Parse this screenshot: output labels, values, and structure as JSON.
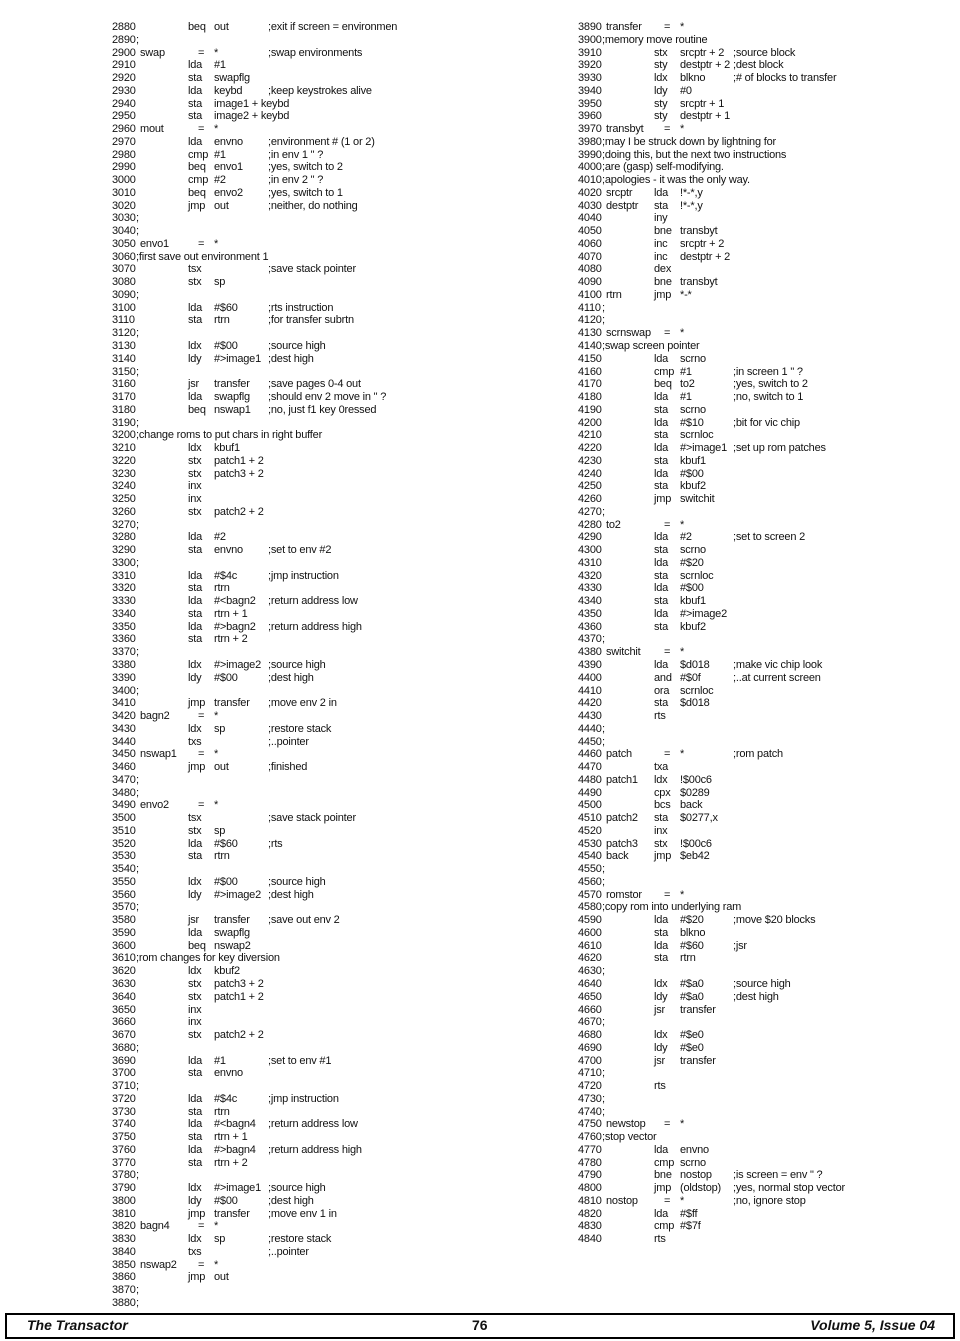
{
  "listing": {
    "left": [
      {
        "n": "2880",
        "o": "beq",
        "a": "out",
        "c": ";exit if screen = environmen"
      },
      {
        "n": "2890",
        "l": ";"
      },
      {
        "n": "2900",
        "l": "swap",
        "o": "=",
        "a": "*",
        "c": ";swap environments"
      },
      {
        "n": "2910",
        "o": "lda",
        "a": "#1"
      },
      {
        "n": "2920",
        "o": "sta",
        "a": "swapflg"
      },
      {
        "n": "2930",
        "o": "lda",
        "a": "keybd",
        "c": ";keep keystrokes alive"
      },
      {
        "n": "2940",
        "o": "sta",
        "a": "image1 + keybd"
      },
      {
        "n": "2950",
        "o": "sta",
        "a": "image2 + keybd"
      },
      {
        "n": "2960",
        "l": "mout",
        "o": "=",
        "a": "*"
      },
      {
        "n": "2970",
        "o": "lda",
        "a": "envno",
        "c": ";environment # (1 or 2)"
      },
      {
        "n": "2980",
        "o": "cmp",
        "a": "#1",
        "c": ";in env 1 \" ?"
      },
      {
        "n": "2990",
        "o": "beq",
        "a": "envo1",
        "c": ";yes, switch to 2"
      },
      {
        "n": "3000",
        "o": "cmp",
        "a": "#2",
        "c": ";in env 2 \" ?"
      },
      {
        "n": "3010",
        "o": "beq",
        "a": "envo2",
        "c": ";yes, switch to 1"
      },
      {
        "n": "3020",
        "o": "jmp",
        "a": "out",
        "c": ";neither, do nothing"
      },
      {
        "n": "3030",
        "l": ";"
      },
      {
        "n": "3040",
        "l": ";"
      },
      {
        "n": "3050",
        "l": "envo1",
        "o": "=",
        "a": "*"
      },
      {
        "n": "3060",
        "l": ";first save out environment 1"
      },
      {
        "n": "3070",
        "o": "tsx",
        "c": ";save stack pointer"
      },
      {
        "n": "3080",
        "o": "stx",
        "a": "sp"
      },
      {
        "n": "3090",
        "l": ";"
      },
      {
        "n": "3100",
        "o": "lda",
        "a": "#$60",
        "c": ";rts instruction"
      },
      {
        "n": "3110",
        "o": "sta",
        "a": "rtrn",
        "c": ";for transfer subrtn"
      },
      {
        "n": "3120",
        "l": ";"
      },
      {
        "n": "3130",
        "o": "ldx",
        "a": "#$00",
        "c": ";source high"
      },
      {
        "n": "3140",
        "o": "ldy",
        "a": "#>image1",
        "c": ";dest high"
      },
      {
        "n": "3150",
        "l": ";"
      },
      {
        "n": "3160",
        "o": "jsr",
        "a": "transfer",
        "c": ";save pages 0-4 out"
      },
      {
        "n": "3170",
        "o": "lda",
        "a": "swapflg",
        "c": ";should env 2 move in \" ?"
      },
      {
        "n": "3180",
        "o": "beq",
        "a": "nswap1",
        "c": ";no, just f1 key 0ressed"
      },
      {
        "n": "3190",
        "l": ";"
      },
      {
        "n": "3200",
        "l": ";change roms to put chars in right buffer"
      },
      {
        "n": "3210",
        "o": "ldx",
        "a": "kbuf1"
      },
      {
        "n": "3220",
        "o": "stx",
        "a": "patch1 + 2"
      },
      {
        "n": "3230",
        "o": "stx",
        "a": "patch3 + 2"
      },
      {
        "n": "3240",
        "o": "inx"
      },
      {
        "n": "3250",
        "o": "inx"
      },
      {
        "n": "3260",
        "o": "stx",
        "a": "patch2 + 2"
      },
      {
        "n": "3270",
        "l": ";"
      },
      {
        "n": "3280",
        "o": "lda",
        "a": "#2"
      },
      {
        "n": "3290",
        "o": "sta",
        "a": "envno",
        "c": ";set to env #2"
      },
      {
        "n": "3300",
        "l": ";"
      },
      {
        "n": "3310",
        "o": "lda",
        "a": "#$4c",
        "c": ";jmp instruction"
      },
      {
        "n": "3320",
        "o": "sta",
        "a": "rtrn"
      },
      {
        "n": "3330",
        "o": "lda",
        "a": "#<bagn2",
        "c": ";return address low"
      },
      {
        "n": "3340",
        "o": "sta",
        "a": "rtrn + 1"
      },
      {
        "n": "3350",
        "o": "lda",
        "a": "#>bagn2",
        "c": ";return address high"
      },
      {
        "n": "3360",
        "o": "sta",
        "a": "rtrn + 2"
      },
      {
        "n": "3370",
        "l": ";"
      },
      {
        "n": "3380",
        "o": "ldx",
        "a": "#>image2",
        "c": ";source high"
      },
      {
        "n": "3390",
        "o": "ldy",
        "a": "#$00",
        "c": ";dest  high"
      },
      {
        "n": "3400",
        "l": ";"
      },
      {
        "n": "3410",
        "o": "jmp",
        "a": "transfer",
        "c": ";move env 2 in"
      },
      {
        "n": "3420",
        "l": "bagn2",
        "o": "=",
        "a": "*"
      },
      {
        "n": "3430",
        "o": "ldx",
        "a": "sp",
        "c": ";restore stack"
      },
      {
        "n": "3440",
        "o": "txs",
        "c": ";..pointer"
      },
      {
        "n": "3450",
        "l": "nswap1",
        "o": "=",
        "a": "*"
      },
      {
        "n": "3460",
        "o": "jmp",
        "a": "out",
        "c": ";finished"
      },
      {
        "n": "3470",
        "l": ";"
      },
      {
        "n": "3480",
        "l": ";"
      },
      {
        "n": "3490",
        "l": "envo2",
        "o": "=",
        "a": "*"
      },
      {
        "n": "3500",
        "o": "tsx",
        "c": ";save stack pointer"
      },
      {
        "n": "3510",
        "o": "stx",
        "a": "sp"
      },
      {
        "n": "3520",
        "o": "lda",
        "a": "#$60",
        "c": ";rts"
      },
      {
        "n": "3530",
        "o": "sta",
        "a": "rtrn"
      },
      {
        "n": "3540",
        "l": ";"
      },
      {
        "n": "3550",
        "o": "ldx",
        "a": "#$00",
        "c": ";source high"
      },
      {
        "n": "3560",
        "o": "ldy",
        "a": "#>image2",
        "c": ";dest high"
      },
      {
        "n": "3570",
        "l": ";"
      },
      {
        "n": "3580",
        "o": "jsr",
        "a": "transfer",
        "c": ";save out env 2"
      },
      {
        "n": "3590",
        "o": "lda",
        "a": "swapflg"
      },
      {
        "n": "3600",
        "o": "beq",
        "a": "nswap2"
      },
      {
        "n": "3610",
        "l": ";rom changes for key diversion"
      },
      {
        "n": "3620",
        "o": "ldx",
        "a": "kbuf2"
      },
      {
        "n": "3630",
        "o": "stx",
        "a": "patch3 + 2"
      },
      {
        "n": "3640",
        "o": "stx",
        "a": "patch1 + 2"
      },
      {
        "n": "3650",
        "o": "inx"
      },
      {
        "n": "3660",
        "o": "inx"
      },
      {
        "n": "3670",
        "o": "stx",
        "a": "patch2 + 2"
      },
      {
        "n": "3680",
        "l": ";"
      },
      {
        "n": "3690",
        "o": "lda",
        "a": "#1",
        "c": ";set to env #1"
      },
      {
        "n": "3700",
        "o": "sta",
        "a": "envno"
      },
      {
        "n": "3710",
        "l": ";"
      },
      {
        "n": "3720",
        "o": "lda",
        "a": "#$4c",
        "c": ";jmp instruction"
      },
      {
        "n": "3730",
        "o": "sta",
        "a": "rtrn"
      },
      {
        "n": "3740",
        "o": "lda",
        "a": "#<bagn4",
        "c": ";return address low"
      },
      {
        "n": "3750",
        "o": "sta",
        "a": "rtrn + 1"
      },
      {
        "n": "3760",
        "o": "lda",
        "a": "#>bagn4",
        "c": ";return address high"
      },
      {
        "n": "3770",
        "o": "sta",
        "a": "rtrn + 2"
      },
      {
        "n": "3780",
        "l": ";"
      },
      {
        "n": "3790",
        "o": "ldx",
        "a": "#>image1",
        "c": ";source high"
      },
      {
        "n": "3800",
        "o": "ldy",
        "a": "#$00",
        "c": ";dest  high"
      },
      {
        "n": "3810",
        "o": "jmp",
        "a": "transfer",
        "c": ";move env 1 in"
      },
      {
        "n": "3820",
        "l": "bagn4",
        "o": "=",
        "a": "*"
      },
      {
        "n": "3830",
        "o": "ldx",
        "a": "sp",
        "c": ";restore stack"
      },
      {
        "n": "3840",
        "o": "txs",
        "c": ";..pointer"
      },
      {
        "n": "3850",
        "l": "nswap2",
        "o": "=",
        "a": "*"
      },
      {
        "n": "3860",
        "o": "jmp",
        "a": "out"
      },
      {
        "n": "3870",
        "l": ";"
      },
      {
        "n": "3880",
        "l": ";"
      }
    ],
    "right": [
      {
        "n": "3890",
        "l": "transfer",
        "o": "=",
        "a": "*"
      },
      {
        "n": "3900",
        "l": ";memory move routine"
      },
      {
        "n": "3910",
        "o": "stx",
        "a": "srcptr + 2",
        "c": ";source block"
      },
      {
        "n": "3920",
        "o": "sty",
        "a": "destptr + 2",
        "c": ";dest block"
      },
      {
        "n": "3930",
        "o": "ldx",
        "a": "blkno",
        "c": ";# of blocks to transfer"
      },
      {
        "n": "3940",
        "o": "ldy",
        "a": "#0"
      },
      {
        "n": "3950",
        "o": "sty",
        "a": "srcptr + 1"
      },
      {
        "n": "3960",
        "o": "sty",
        "a": "destptr + 1"
      },
      {
        "n": "3970",
        "l": "transbyt",
        "o": "=",
        "a": "*"
      },
      {
        "n": "3980",
        "l": ";may I be struck down by lightning for"
      },
      {
        "n": "3990",
        "l": ";doing this, but the next two instructions"
      },
      {
        "n": "4000",
        "l": ";are (gasp) self-modifying."
      },
      {
        "n": "4010",
        "l": ";apologies - it was the only way."
      },
      {
        "n": "4020",
        "l": "srcptr",
        "o": "lda",
        "a": "!*-*,y"
      },
      {
        "n": "4030",
        "l": "destptr",
        "o": "sta",
        "a": "!*-*,y"
      },
      {
        "n": "4040",
        "o": "iny"
      },
      {
        "n": "4050",
        "o": "bne",
        "a": "transbyt"
      },
      {
        "n": "4060",
        "o": "inc",
        "a": "srcptr + 2"
      },
      {
        "n": "4070",
        "o": "inc",
        "a": "destptr + 2"
      },
      {
        "n": "4080",
        "o": "dex"
      },
      {
        "n": "4090",
        "o": "bne",
        "a": "transbyt"
      },
      {
        "n": "4100",
        "l": "rtrn",
        "o": "jmp",
        "a": "*-*"
      },
      {
        "n": "4110",
        "l": ";"
      },
      {
        "n": "4120",
        "l": ";"
      },
      {
        "n": "4130",
        "l": "scrnswap",
        "o": "=",
        "a": "*"
      },
      {
        "n": "4140",
        "l": ";swap screen pointer"
      },
      {
        "n": "4150",
        "o": "lda",
        "a": "scrno"
      },
      {
        "n": "4160",
        "o": "cmp",
        "a": "#1",
        "c": ";in screen 1 \" ?"
      },
      {
        "n": "4170",
        "o": "beq",
        "a": "to2",
        "c": ";yes, switch to 2"
      },
      {
        "n": "4180",
        "o": "lda",
        "a": "#1",
        "c": ";no, switch to 1"
      },
      {
        "n": "4190",
        "o": "sta",
        "a": "scrno"
      },
      {
        "n": "4200",
        "o": "lda",
        "a": "#$10",
        "c": ";bit for vic chip"
      },
      {
        "n": "4210",
        "o": "sta",
        "a": "scrnloc"
      },
      {
        "n": "4220",
        "o": "lda",
        "a": "#>image1",
        "c": ";set up rom patches"
      },
      {
        "n": "4230",
        "o": "sta",
        "a": "kbuf1"
      },
      {
        "n": "4240",
        "o": "lda",
        "a": "#$00"
      },
      {
        "n": "4250",
        "o": "sta",
        "a": "kbuf2"
      },
      {
        "n": "4260",
        "o": "jmp",
        "a": "switchit"
      },
      {
        "n": "4270",
        "l": ";"
      },
      {
        "n": "4280",
        "l": "to2",
        "o": "=",
        "a": "*"
      },
      {
        "n": "4290",
        "o": "lda",
        "a": "#2",
        "c": ";set to screen 2"
      },
      {
        "n": "4300",
        "o": "sta",
        "a": "scrno"
      },
      {
        "n": "4310",
        "o": "lda",
        "a": "#$20"
      },
      {
        "n": "4320",
        "o": "sta",
        "a": "scrnloc"
      },
      {
        "n": "4330",
        "o": "lda",
        "a": "#$00"
      },
      {
        "n": "4340",
        "o": "sta",
        "a": "kbuf1"
      },
      {
        "n": "4350",
        "o": "lda",
        "a": "#>image2"
      },
      {
        "n": "4360",
        "o": "sta",
        "a": "kbuf2"
      },
      {
        "n": "4370",
        "l": ";"
      },
      {
        "n": "4380",
        "l": "switchit",
        "o": "=",
        "a": "*"
      },
      {
        "n": "4390",
        "o": "lda",
        "a": "$d018",
        "c": ";make vic chip look"
      },
      {
        "n": "4400",
        "o": "and",
        "a": "#$0f",
        "c": ";..at current screen"
      },
      {
        "n": "4410",
        "o": "ora",
        "a": "scrnloc"
      },
      {
        "n": "4420",
        "o": "sta",
        "a": "$d018"
      },
      {
        "n": "4430",
        "o": "rts"
      },
      {
        "n": "4440",
        "l": ";"
      },
      {
        "n": "4450",
        "l": ";"
      },
      {
        "n": "4460",
        "l": "patch",
        "o": "=",
        "a": "*",
        "c": ";rom patch"
      },
      {
        "n": "4470",
        "o": "txa"
      },
      {
        "n": "4480",
        "l": "patch1",
        "o": "ldx",
        "a": "!$00c6"
      },
      {
        "n": "4490",
        "o": "cpx",
        "a": "$0289"
      },
      {
        "n": "4500",
        "o": "bcs",
        "a": "back"
      },
      {
        "n": "4510",
        "l": "patch2",
        "o": "sta",
        "a": "$0277,x"
      },
      {
        "n": "4520",
        "o": "inx"
      },
      {
        "n": "4530",
        "l": "patch3",
        "o": "stx",
        "a": "!$00c6"
      },
      {
        "n": "4540",
        "l": "back",
        "o": "jmp",
        "a": "$eb42"
      },
      {
        "n": "4550",
        "l": ";"
      },
      {
        "n": "4560",
        "l": ";"
      },
      {
        "n": "4570",
        "l": "romstor",
        "o": "=",
        "a": "*"
      },
      {
        "n": "4580",
        "l": ";copy rom into underlying ram"
      },
      {
        "n": "4590",
        "o": "lda",
        "a": "#$20",
        "c": ";move $20 blocks"
      },
      {
        "n": "4600",
        "o": "sta",
        "a": "blkno"
      },
      {
        "n": "4610",
        "o": "lda",
        "a": "#$60",
        "c": ";jsr"
      },
      {
        "n": "4620",
        "o": "sta",
        "a": "rtrn"
      },
      {
        "n": "4630",
        "l": ";"
      },
      {
        "n": "4640",
        "o": "ldx",
        "a": "#$a0",
        "c": ";source high"
      },
      {
        "n": "4650",
        "o": "ldy",
        "a": "#$a0",
        "c": ";dest high"
      },
      {
        "n": "4660",
        "o": "jsr",
        "a": "transfer"
      },
      {
        "n": "4670",
        "l": ";"
      },
      {
        "n": "4680",
        "o": "ldx",
        "a": "#$e0"
      },
      {
        "n": "4690",
        "o": "ldy",
        "a": "#$e0"
      },
      {
        "n": "4700",
        "o": "jsr",
        "a": "transfer"
      },
      {
        "n": "4710",
        "l": ";"
      },
      {
        "n": "4720",
        "o": "rts"
      },
      {
        "n": "4730",
        "l": ";"
      },
      {
        "n": "4740",
        "l": ";"
      },
      {
        "n": "4750",
        "l": "newstop",
        "o": "=",
        "a": "*"
      },
      {
        "n": "4760",
        "l": ";stop vector"
      },
      {
        "n": "4770",
        "o": "lda",
        "a": "envno"
      },
      {
        "n": "4780",
        "o": "cmp",
        "a": "scrno"
      },
      {
        "n": "4790",
        "o": "bne",
        "a": "nostop",
        "c": ";is screen = env \" ?"
      },
      {
        "n": "4800",
        "o": "jmp",
        "a": "(oldstop)",
        "c": ";yes, normal stop vector"
      },
      {
        "n": "4810",
        "l": "nostop",
        "o": "=",
        "a": "*",
        "c": ";no, ignore stop"
      },
      {
        "n": "4820",
        "o": "lda",
        "a": "#$ff"
      },
      {
        "n": "4830",
        "o": "cmp",
        "a": "#$7f"
      },
      {
        "n": "4840",
        "o": "rts"
      }
    ]
  },
  "footer": {
    "left": "The Transactor",
    "page": "76",
    "right": "Volume 5, Issue 04"
  }
}
